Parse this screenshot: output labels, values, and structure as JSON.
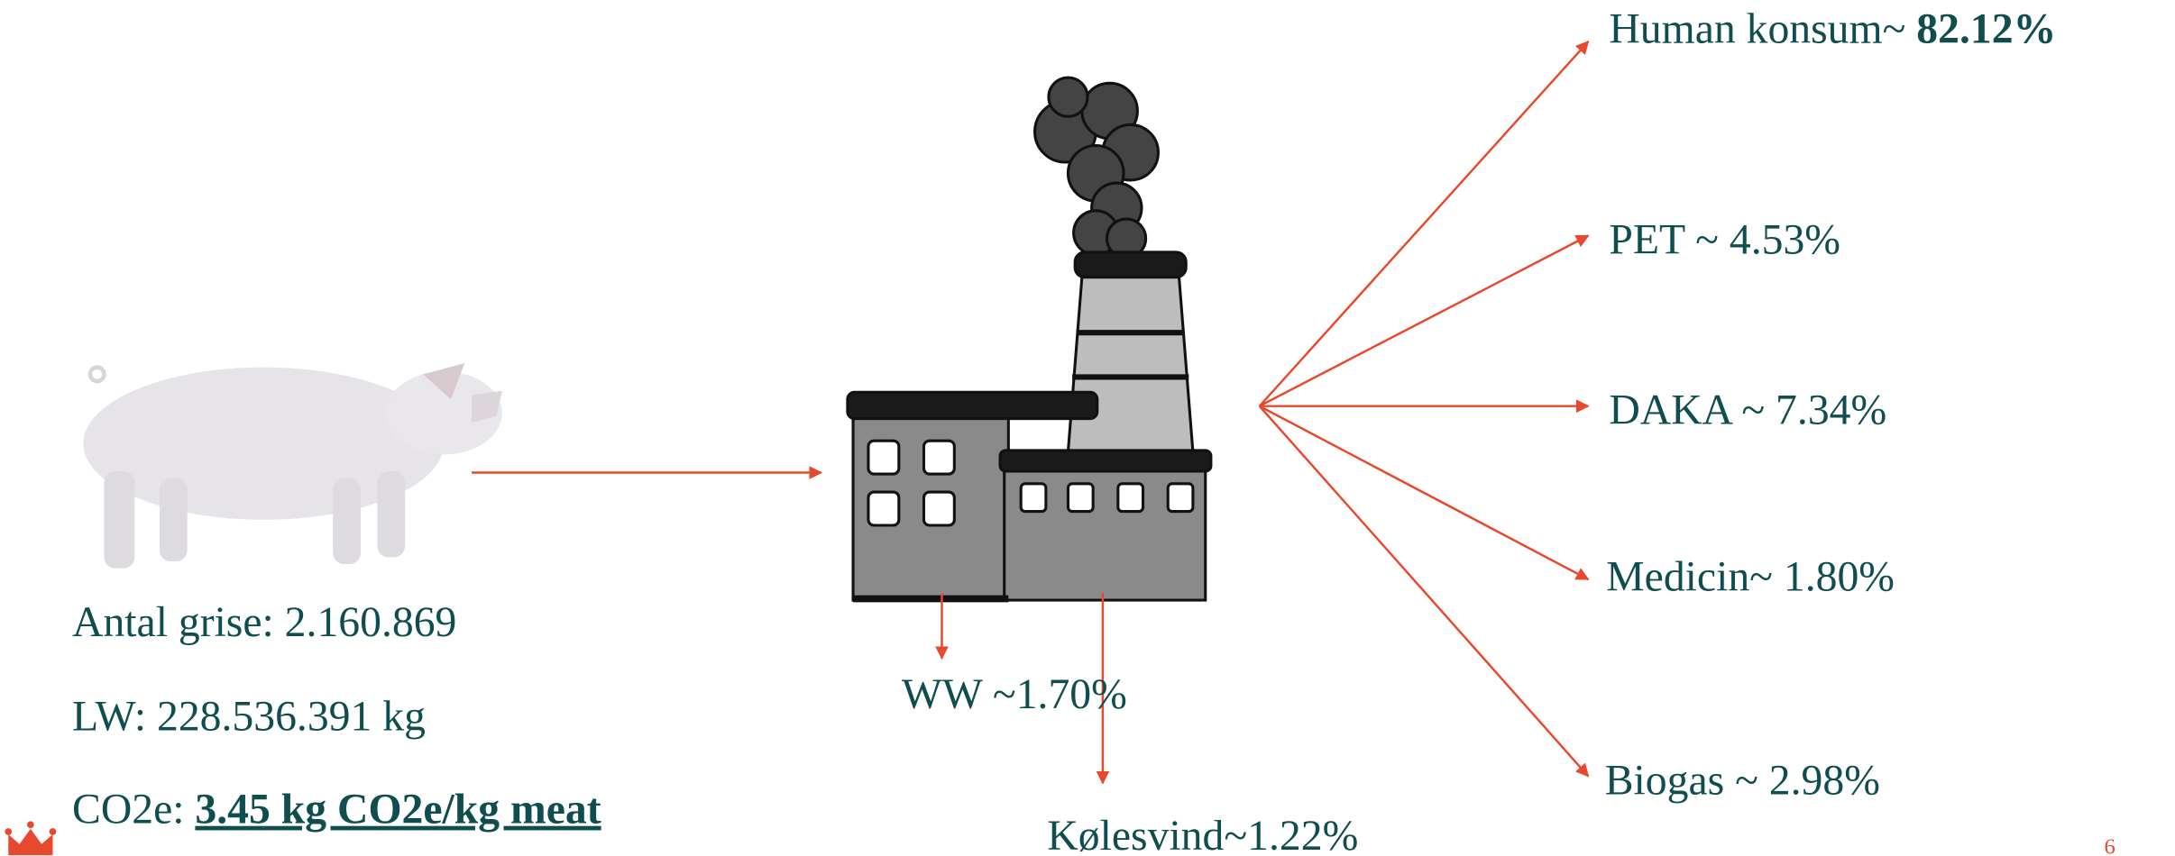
{
  "input": {
    "lines": [
      {
        "label": "Antal grise: 2.160.869"
      },
      {
        "label": "LW: 228.536.391 kg"
      },
      {
        "label": "CO2e: ",
        "value": "3.45 kg CO2e/kg meat"
      }
    ]
  },
  "outputs": [
    {
      "label": "Human konsum~ ",
      "value": "82.12%"
    },
    {
      "label": "PET ~ 4.53%"
    },
    {
      "label": "DAKA ~ 7.34%"
    },
    {
      "label": "Medicin~ 1.80%"
    },
    {
      "label": "Biogas ~ 2.98%"
    },
    {
      "label": "WW ~1.70%"
    },
    {
      "label": "Kølesvind~1.22%"
    }
  ],
  "page_number": "6"
}
